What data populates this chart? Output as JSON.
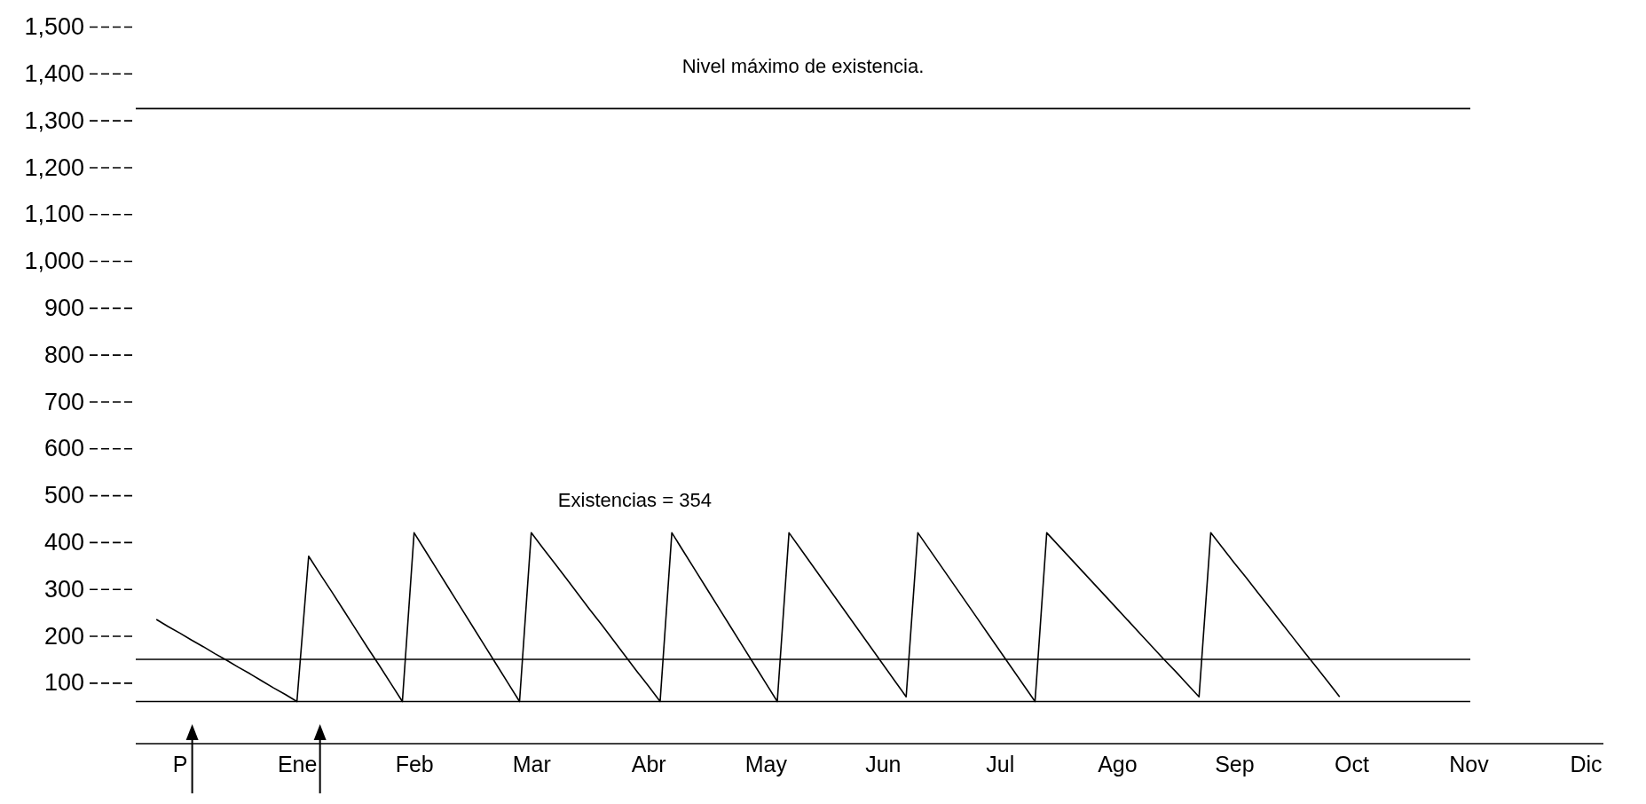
{
  "chart_data": {
    "type": "line",
    "categories": [
      null,
      null,
      null,
      "P",
      null,
      null,
      null,
      null,
      null,
      null,
      null,
      null,
      null,
      "Ene",
      null,
      null,
      null,
      null,
      null,
      null,
      null,
      null,
      null,
      "Feb",
      null,
      null,
      null,
      null,
      null,
      null,
      null,
      null,
      null,
      "Mar",
      null,
      null,
      null,
      null,
      null,
      null,
      null,
      null,
      null,
      "Abr",
      null,
      null,
      null,
      null,
      null,
      null,
      null,
      null,
      null,
      "May",
      null,
      null,
      null,
      null,
      null,
      null,
      null,
      null,
      null,
      "Jun",
      null,
      null,
      null,
      null,
      null,
      null,
      null,
      null,
      null,
      "Jul",
      null,
      null,
      null,
      null,
      null,
      null,
      null,
      null,
      null,
      "Ago",
      null,
      null,
      null,
      null,
      null,
      null,
      null,
      null,
      null,
      "Sep",
      null,
      null,
      null,
      null,
      null,
      null,
      null,
      null,
      null,
      "Oct",
      null,
      null,
      null,
      null,
      null,
      null,
      null,
      null,
      null,
      "Nov",
      null,
      null,
      null,
      null,
      null,
      null,
      null,
      null,
      null,
      "Dic"
    ],
    "ylim": [
      -30,
      1500
    ],
    "yticks": [
      {
        "value": 100,
        "label": "100"
      },
      {
        "value": 200,
        "label": "200"
      },
      {
        "value": 300,
        "label": "300"
      },
      {
        "value": 400,
        "label": "400"
      },
      {
        "value": 500,
        "label": "500"
      },
      {
        "value": 600,
        "label": "600"
      },
      {
        "value": 700,
        "label": "700"
      },
      {
        "value": 800,
        "label": "800"
      },
      {
        "value": 900,
        "label": "900"
      },
      {
        "value": 1000,
        "label": "1,000"
      },
      {
        "value": 1100,
        "label": "1,100"
      },
      {
        "value": 1200,
        "label": "1,200"
      },
      {
        "value": 1300,
        "label": "1,300"
      },
      {
        "value": 1400,
        "label": "1,400"
      },
      {
        "value": 1500,
        "label": "1,500"
      }
    ],
    "series": [
      {
        "color": "#000000",
        "values": [
          null,
          235,
          220,
          206,
          191,
          177,
          162,
          148,
          133,
          119,
          104,
          89,
          75,
          60,
          370,
          331,
          293,
          254,
          215,
          176,
          138,
          99,
          60,
          420,
          380,
          340,
          300,
          260,
          220,
          180,
          140,
          100,
          60,
          420,
          387,
          355,
          322,
          289,
          256,
          224,
          191,
          158,
          125,
          93,
          60,
          420,
          380,
          340,
          300,
          260,
          220,
          180,
          140,
          100,
          60,
          420,
          385,
          350,
          315,
          280,
          245,
          210,
          175,
          140,
          105,
          70,
          420,
          384,
          348,
          312,
          276,
          240,
          204,
          168,
          132,
          96,
          60,
          420,
          393,
          366,
          339,
          312,
          285,
          258,
          231,
          204,
          177,
          150,
          124,
          97,
          70,
          420,
          388,
          356,
          325,
          293,
          261,
          229,
          197,
          165,
          134,
          102,
          70,
          null,
          null,
          null,
          null,
          null,
          null,
          null,
          null,
          null,
          null,
          null,
          null,
          null,
          null,
          null,
          null,
          null,
          null,
          null,
          null,
          null
        ]
      }
    ],
    "ref_lines": [
      {
        "axis": "y",
        "value": 60,
        "color": "#000000"
      },
      {
        "axis": "y",
        "value": 150,
        "color": "#000000"
      },
      {
        "axis": "y",
        "value": 1325,
        "label": "Nivel máximo de existencia.",
        "color": "#000000"
      }
    ],
    "annotations": [
      "Existencias = 354"
    ],
    "grid": false,
    "marker": "none",
    "line_style": "solid"
  }
}
